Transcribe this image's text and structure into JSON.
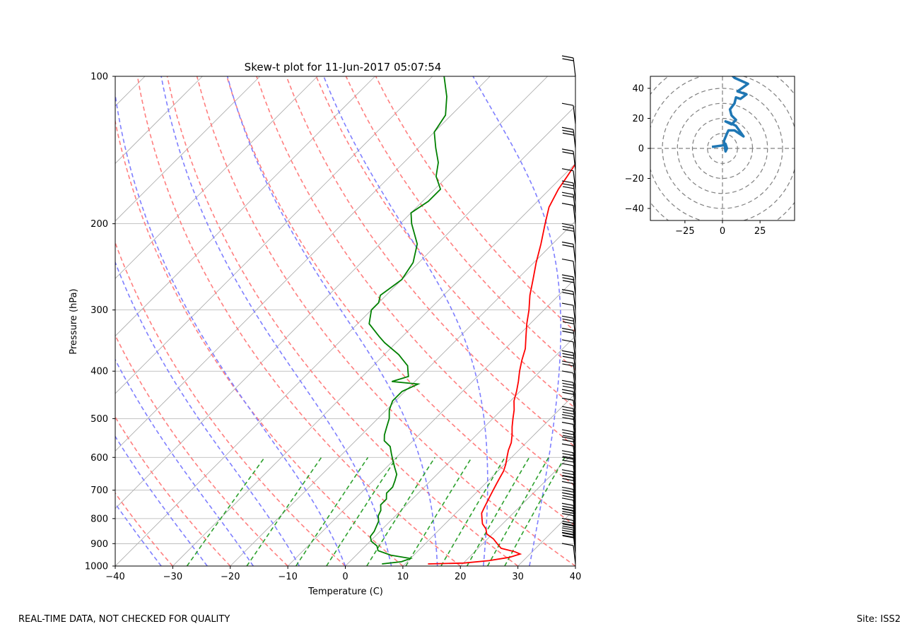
{
  "footer": {
    "disclaimer": "REAL-TIME DATA, NOT CHECKED FOR QUALITY",
    "site": "Site: ISS2"
  },
  "chart_data": [
    {
      "type": "line",
      "name_hint": "skew-t",
      "title": "Skew-t plot for 11-Jun-2017 05:07:54",
      "xlabel": "Temperature (C)",
      "ylabel": "Pressure (hPa)",
      "xlim": [
        -40,
        40
      ],
      "ylim": [
        1000,
        100
      ],
      "y_scale": "log",
      "x_ticks": [
        -40,
        -30,
        -20,
        -10,
        0,
        10,
        20,
        30,
        40
      ],
      "y_ticks": [
        100,
        200,
        300,
        400,
        500,
        600,
        700,
        800,
        900,
        1000
      ],
      "grid": true,
      "colors": {
        "temperature": "#ff0000",
        "dewpoint": "#008000",
        "dry_adiabats": "#ff7f7f",
        "moist_adiabats": "#7f7fff",
        "mixing_ratio": "#2ca02c",
        "isotherms": "#a9a9a9"
      },
      "series": [
        {
          "name": "",
          "role": "temperature",
          "points": [
            [
              990,
              14
            ],
            [
              986,
              20
            ],
            [
              975,
              24
            ],
            [
              960,
              27
            ],
            [
              945,
              28.3
            ],
            [
              935,
              27
            ],
            [
              920,
              24
            ],
            [
              900,
              22.5
            ],
            [
              880,
              21
            ],
            [
              860,
              19
            ],
            [
              840,
              18
            ],
            [
              820,
              16.5
            ],
            [
              800,
              15.5
            ],
            [
              780,
              14.5
            ],
            [
              760,
              14
            ],
            [
              740,
              13.5
            ],
            [
              720,
              13
            ],
            [
              700,
              12.5
            ],
            [
              680,
              12
            ],
            [
              660,
              11.5
            ],
            [
              640,
              11
            ],
            [
              620,
              10.2
            ],
            [
              600,
              9.2
            ],
            [
              580,
              8.2
            ],
            [
              560,
              7.4
            ],
            [
              540,
              6.2
            ],
            [
              520,
              4.8
            ],
            [
              500,
              3.5
            ],
            [
              480,
              2.2
            ],
            [
              460,
              0.6
            ],
            [
              440,
              -0.6
            ],
            [
              420,
              -2
            ],
            [
              400,
              -3.6
            ],
            [
              380,
              -5.1
            ],
            [
              360,
              -6.5
            ],
            [
              340,
              -8.5
            ],
            [
              320,
              -10.6
            ],
            [
              300,
              -12.6
            ],
            [
              280,
              -15
            ],
            [
              260,
              -17.2
            ],
            [
              240,
              -19.6
            ],
            [
              220,
              -22
            ],
            [
              200,
              -24.8
            ],
            [
              185,
              -27
            ],
            [
              170,
              -28.5
            ],
            [
              160,
              -29.2
            ],
            [
              150,
              -30
            ],
            [
              140,
              -31
            ],
            [
              130,
              -33
            ],
            [
              120,
              -35.3
            ],
            [
              110,
              -38.5
            ],
            [
              100,
              -43
            ]
          ]
        },
        {
          "name": "",
          "role": "dewpoint",
          "points": [
            [
              990,
              6
            ],
            [
              980,
              9
            ],
            [
              965,
              10
            ],
            [
              950,
              6
            ],
            [
              930,
              3
            ],
            [
              910,
              2
            ],
            [
              890,
              0.2
            ],
            [
              870,
              -0.8
            ],
            [
              850,
              -1
            ],
            [
              830,
              -1.5
            ],
            [
              810,
              -2
            ],
            [
              790,
              -3
            ],
            [
              770,
              -3.5
            ],
            [
              750,
              -4.5
            ],
            [
              730,
              -4.5
            ],
            [
              710,
              -5.5
            ],
            [
              690,
              -5.5
            ],
            [
              670,
              -6.2
            ],
            [
              650,
              -7
            ],
            [
              630,
              -8.5
            ],
            [
              610,
              -10
            ],
            [
              590,
              -11.5
            ],
            [
              570,
              -13
            ],
            [
              555,
              -15
            ],
            [
              540,
              -16
            ],
            [
              520,
              -17
            ],
            [
              500,
              -18
            ],
            [
              480,
              -19.5
            ],
            [
              460,
              -20.5
            ],
            [
              440,
              -20.5
            ],
            [
              425,
              -19
            ],
            [
              420,
              -24
            ],
            [
              410,
              -22
            ],
            [
              400,
              -23
            ],
            [
              390,
              -24
            ],
            [
              370,
              -27.5
            ],
            [
              350,
              -32
            ],
            [
              340,
              -34
            ],
            [
              320,
              -38
            ],
            [
              300,
              -40
            ],
            [
              290,
              -40
            ],
            [
              280,
              -41
            ],
            [
              260,
              -40
            ],
            [
              240,
              -41
            ],
            [
              220,
              -43.5
            ],
            [
              200,
              -48
            ],
            [
              190,
              -50
            ],
            [
              180,
              -49
            ],
            [
              170,
              -49
            ],
            [
              160,
              -52
            ],
            [
              150,
              -54
            ],
            [
              140,
              -57
            ],
            [
              130,
              -60
            ],
            [
              120,
              -61
            ],
            [
              110,
              -64
            ],
            [
              100,
              -68
            ]
          ]
        }
      ],
      "wind_barbs": {
        "shaft_x_temp": 40,
        "levels_hpa": [
          990,
          940,
          930,
          920,
          900,
          880,
          860,
          840,
          820,
          800,
          780,
          760,
          740,
          720,
          700,
          680,
          660,
          640,
          620,
          600,
          580,
          560,
          540,
          520,
          500,
          480,
          460,
          440,
          420,
          400,
          380,
          360,
          340,
          320,
          300,
          280,
          260,
          240,
          220,
          200,
          190,
          180,
          170,
          155,
          140,
          125,
          100
        ]
      }
    },
    {
      "type": "line",
      "name_hint": "hodograph",
      "xlim": [
        -48,
        48
      ],
      "ylim": [
        -48,
        48
      ],
      "x_ticks": [
        -25,
        0,
        25
      ],
      "y_ticks": [
        -40,
        -20,
        0,
        20,
        40
      ],
      "ring_radii": [
        10,
        20,
        30,
        40,
        50,
        60
      ],
      "color": "#1f77b4",
      "series": [
        {
          "name": "",
          "points": [
            [
              -7,
              1
            ],
            [
              0,
              2
            ],
            [
              2,
              3
            ],
            [
              3,
              0
            ],
            [
              2,
              -2
            ],
            [
              1,
              5
            ],
            [
              3,
              10
            ],
            [
              4,
              12
            ],
            [
              8,
              12
            ],
            [
              14,
              8
            ],
            [
              9,
              15
            ],
            [
              5,
              17
            ],
            [
              2,
              18
            ],
            [
              6,
              16
            ],
            [
              9,
              19
            ],
            [
              6,
              22
            ],
            [
              5,
              26
            ],
            [
              8,
              30
            ],
            [
              9,
              34
            ],
            [
              12,
              33
            ],
            [
              16,
              36
            ],
            [
              10,
              38
            ],
            [
              17,
              43
            ],
            [
              8,
              47
            ],
            [
              3,
              52
            ]
          ]
        }
      ]
    }
  ]
}
